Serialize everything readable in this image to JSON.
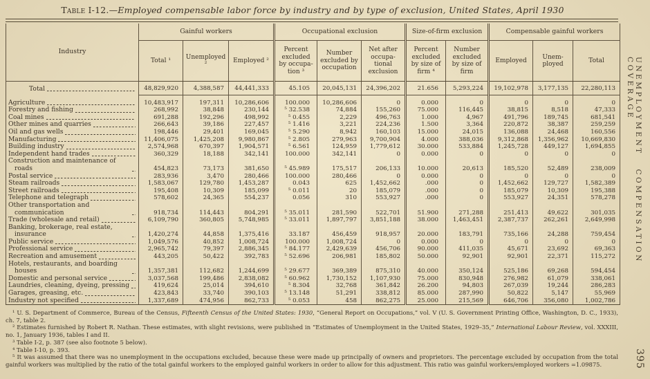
{
  "page": {
    "title_label": "Table I-12.—",
    "title_text": "Employed compensable labor force by industry and by type of exclusion, United States, April 1930",
    "side_label": "UNEMPLOYMENT COMPENSATION COVERAGE",
    "page_number": "395"
  },
  "table": {
    "row_header": "Industry",
    "groups": [
      {
        "label": "Gainful workers",
        "span": 3
      },
      {
        "label": "Occupational exclusion",
        "span": 3
      },
      {
        "label": "Size-of-firm exclusion",
        "span": 2
      },
      {
        "label": "Compensable gainful workers",
        "span": 3
      }
    ],
    "columns": [
      "Total ¹",
      "Unem­ployed ²",
      "Employed ²",
      "Percent excluded by occupa­tion ³",
      "Number excluded by occu­pation",
      "Net after occupa­tional exclusion",
      "Percent excluded by size of firm ⁴",
      "Number excluded by size of firm",
      "Employed",
      "Unem­ployed",
      "Total"
    ],
    "total_row": {
      "label": "Total",
      "values": [
        "48,829,920",
        "4,388,587",
        "44,441,333",
        "45.105",
        "20,045,131",
        "24,396,202",
        "21.656",
        "5,293,224",
        "19,102,978",
        "3,177,135",
        "22,280,113"
      ]
    },
    "rows": [
      {
        "label": "Agriculture",
        "values": [
          "10,483,917",
          "197,311",
          "10,286,606",
          "100.000",
          "10,286,606",
          "0",
          "0.000",
          "0",
          "0",
          "0",
          "0"
        ]
      },
      {
        "label": "Forestry and fishing",
        "values": [
          "268,992",
          "38,848",
          "230,144",
          "⁵ 32.538",
          "74,884",
          "155,260",
          "75.000",
          "116,445",
          "38,815",
          "8,518",
          "47,333"
        ]
      },
      {
        "label": "Coal mines",
        "values": [
          "691,288",
          "192,296",
          "498,992",
          "⁵ 0.455",
          "2,229",
          "496,763",
          "1.000",
          "4,967",
          "491,796",
          "189,745",
          "681,541"
        ]
      },
      {
        "label": "Other mines and quarries",
        "values": [
          "266,643",
          "39,186",
          "227,457",
          "⁵ 1.416",
          "3,221",
          "224,236",
          "1.500",
          "3,364",
          "220,872",
          "38,387",
          "259,259"
        ]
      },
      {
        "label": "Oil and gas wells",
        "values": [
          "198,446",
          "29,401",
          "169,045",
          "⁵ 5.290",
          "8,942",
          "160,103",
          "15.000",
          "24,015",
          "136,088",
          "24,468",
          "160,556"
        ]
      },
      {
        "label": "Manufacturing",
        "values": [
          "11,406,075",
          "1,425,208",
          "9,980,867",
          "⁵ 2.805",
          "279,963",
          "9,700,904",
          "4.000",
          "388,036",
          "9,312,868",
          "1,356,962",
          "10,669,830"
        ]
      },
      {
        "label": "Building industry",
        "values": [
          "2,574,968",
          "670,397",
          "1,904,571",
          "⁵ 6.561",
          "124,959",
          "1,779,612",
          "30.000",
          "533,884",
          "1,245,728",
          "449,127",
          "1,694,855"
        ]
      },
      {
        "label": "Independent hand trades",
        "values": [
          "360,329",
          "18,188",
          "342,141",
          "100.000",
          "342,141",
          "0",
          "0.000",
          "0",
          "0",
          "0",
          "0"
        ]
      },
      {
        "label": "Construction and maintenance of roads",
        "values": [
          "454,823",
          "73,173",
          "381,650",
          "⁵ 45.989",
          "175,517",
          "206,133",
          "10.000",
          "20,613",
          "185,520",
          "52,489",
          "238,009"
        ]
      },
      {
        "label": "Postal service",
        "values": [
          "283,936",
          "3,470",
          "280,466",
          "100.000",
          "280,466",
          "0",
          "0.000",
          "0",
          "0",
          "0",
          "0"
        ]
      },
      {
        "label": "Steam railroads",
        "values": [
          "1,583,067",
          "129,780",
          "1,453,287",
          "0.043",
          "625",
          "1,452,662",
          ".000",
          "0",
          "1,452,662",
          "129,727",
          "1,582,389"
        ]
      },
      {
        "label": "Street railroads",
        "values": [
          "195,408",
          "10,309",
          "185,099",
          "⁵ 0.011",
          "20",
          "185,079",
          ".000",
          "0",
          "185,079",
          "10,309",
          "195,388"
        ]
      },
      {
        "label": "Telephone and telegraph",
        "values": [
          "578,602",
          "24,365",
          "554,237",
          "0.056",
          "310",
          "553,927",
          ".000",
          "0",
          "553,927",
          "24,351",
          "578,278"
        ]
      },
      {
        "label": "Other transportation and communication",
        "values": [
          "918,734",
          "114,443",
          "804,291",
          "⁵ 35.011",
          "281,590",
          "522,701",
          "51.900",
          "271,288",
          "251,413",
          "49,622",
          "301,035"
        ]
      },
      {
        "label": "Trade (wholesale and retail)",
        "values": [
          "6,109,790",
          "360,805",
          "5,748,985",
          "⁵ 33.011",
          "1,897,797",
          "3,851,188",
          "38.000",
          "1,463,451",
          "2,387,737",
          "262,261",
          "2,649,998"
        ]
      },
      {
        "label": "Banking, brokerage, real estate, insurance",
        "values": [
          "1,420,274",
          "44,858",
          "1,375,416",
          "33.187",
          "456,459",
          "918,957",
          "20.000",
          "183,791",
          "735,166",
          "24,288",
          "759,454"
        ]
      },
      {
        "label": "Public service",
        "values": [
          "1,049,576",
          "40,852",
          "1,008,724",
          "100.000",
          "1,008,724",
          "0",
          "0.000",
          "0",
          "0",
          "0",
          "0"
        ]
      },
      {
        "label": "Professional service",
        "values": [
          "2,965,742",
          "79,397",
          "2,886,345",
          "⁵ 84.177",
          "2,429,639",
          "456,706",
          "90.000",
          "411,035",
          "45,671",
          "23,692",
          "69,363"
        ]
      },
      {
        "label": "Recreation and amusement",
        "values": [
          "443,205",
          "50,422",
          "392,783",
          "⁵ 52.696",
          "206,981",
          "185,802",
          "50.000",
          "92,901",
          "92,901",
          "22,371",
          "115,272"
        ]
      },
      {
        "label": "Hotels, restaurants, and boarding houses",
        "values": [
          "1,357,381",
          "112,682",
          "1,244,699",
          "⁵ 29.677",
          "369,389",
          "875,310",
          "40.000",
          "350,124",
          "525,186",
          "69,268",
          "594,454"
        ]
      },
      {
        "label": "Domestic and personal service",
        "values": [
          "3,037,568",
          "199,486",
          "2,838,082",
          "⁵ 60.962",
          "1,730,152",
          "1,107,930",
          "75.000",
          "830,948",
          "276,982",
          "61,079",
          "338,061"
        ]
      },
      {
        "label": "Laundries, cleaning, dyeing, pressing",
        "values": [
          "419,624",
          "25,014",
          "394,610",
          "⁵ 8.304",
          "32,768",
          "361,842",
          "26.200",
          "94,803",
          "267,039",
          "19,244",
          "286,283"
        ]
      },
      {
        "label": "Garages, greasing, etc.",
        "values": [
          "423,843",
          "33,740",
          "390,103",
          "⁵ 13.148",
          "51,291",
          "338,812",
          "85.000",
          "287,990",
          "50,822",
          "5,147",
          "55,969"
        ]
      },
      {
        "label": "Industry not specified",
        "values": [
          "1,337,689",
          "474,956",
          "862,733",
          "⁵ 0.053",
          "458",
          "862,275",
          "25.000",
          "215,569",
          "646,706",
          "356,080",
          "1,002,786"
        ]
      }
    ]
  },
  "footnotes": [
    [
      {
        "text": "¹ U. S. Department of Commerce, Bureau of the Census, ",
        "italic": false
      },
      {
        "text": "Fifteenth Census of the United States: 1930",
        "italic": true
      },
      {
        "text": ", “General Report on Occupations,” vol. V (U. S. Government Printing Office, Washington, D. C., 1933), ch. 7, table 2.",
        "italic": false
      }
    ],
    [
      {
        "text": "² Estimates furnished by Robert R. Nathan.  These estimates, with slight revisions, were published in “Estimates of Unemployment in the United States, 1929–35,” ",
        "italic": false
      },
      {
        "text": "International Labour Review",
        "italic": true
      },
      {
        "text": ", vol. XXXIII, no. 1, January 1936, tables I and II.",
        "italic": false
      }
    ],
    [
      {
        "text": "³ Table I-2, p. 387 (see also footnote 5 below).",
        "italic": false
      }
    ],
    [
      {
        "text": "⁴ Table I-10, p. 393.",
        "italic": false
      }
    ],
    [
      {
        "text": "⁵ It was assumed that there was no unemployment in the occupations excluded, because these were made up principally of owners and proprietors.  The percentage excluded by occupation from the total gainful workers was multiplied by the ratio of the total gainful workers to the employed gainful workers in order to allow for this adjustment.  This ratio was gainful workers/employed workers =1.09875.",
        "italic": false
      }
    ]
  ]
}
